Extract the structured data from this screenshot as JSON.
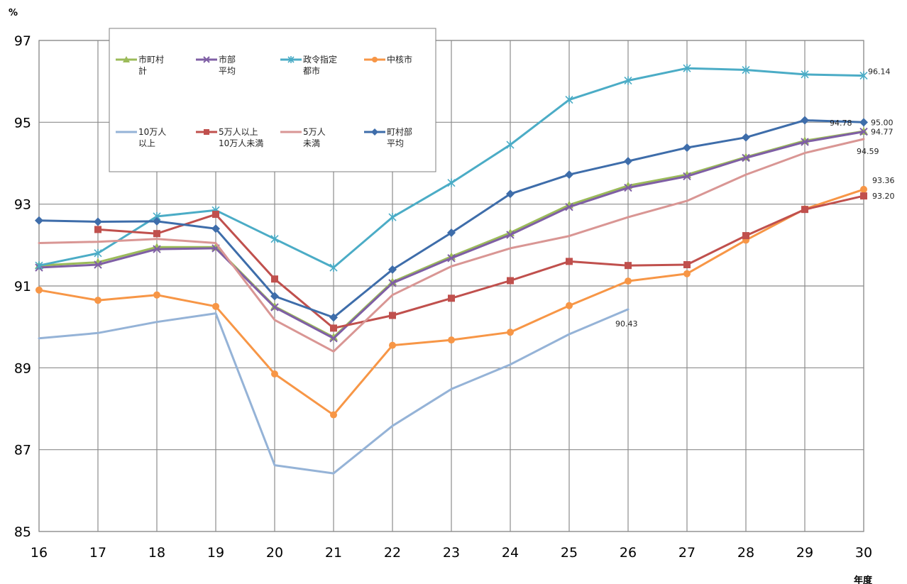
{
  "chart_data": {
    "type": "line",
    "xlabel": "年度",
    "ylabel": "%",
    "x": [
      16,
      17,
      18,
      19,
      20,
      21,
      22,
      23,
      24,
      25,
      26,
      27,
      28,
      29,
      30
    ],
    "ylim": [
      85,
      97
    ],
    "yticks": [
      85,
      87,
      89,
      91,
      93,
      95,
      97
    ],
    "grid": true,
    "legend_position": "top-left",
    "series": [
      {
        "name": "市町村計",
        "legend_lines": [
          "市町村",
          "計"
        ],
        "color": "#9BBB59",
        "marker": "triangle",
        "values": [
          91.5,
          91.58,
          91.95,
          91.95,
          90.5,
          89.75,
          91.1,
          91.72,
          92.3,
          92.98,
          93.45,
          93.72,
          94.15,
          94.55,
          94.78
        ]
      },
      {
        "name": "市部平均",
        "legend_lines": [
          "市部",
          "平均"
        ],
        "color": "#7F5FA5",
        "marker": "x",
        "values": [
          91.45,
          91.52,
          91.9,
          91.92,
          90.48,
          89.72,
          91.07,
          91.68,
          92.25,
          92.93,
          93.4,
          93.68,
          94.13,
          94.52,
          94.77
        ]
      },
      {
        "name": "政令指定都市",
        "legend_lines": [
          "政令指定",
          "都市"
        ],
        "color": "#4BACC6",
        "marker": "star",
        "values": [
          91.5,
          91.8,
          92.7,
          92.85,
          92.15,
          91.45,
          92.68,
          93.52,
          94.45,
          95.55,
          96.02,
          96.32,
          96.28,
          96.17,
          96.14
        ]
      },
      {
        "name": "中核市",
        "legend_lines": [
          "中核市"
        ],
        "color": "#F79646",
        "marker": "circle",
        "values": [
          90.9,
          90.65,
          90.78,
          90.5,
          88.85,
          87.85,
          89.55,
          89.68,
          89.87,
          90.52,
          91.12,
          91.3,
          92.12,
          92.88,
          93.36
        ]
      },
      {
        "name": "10万人以上",
        "legend_lines": [
          "10万人",
          "以上"
        ],
        "color": "#95B3D7",
        "marker": "none",
        "values": [
          89.72,
          89.85,
          90.12,
          90.33,
          86.62,
          86.42,
          87.58,
          88.48,
          89.08,
          89.82,
          90.43,
          null,
          null,
          null,
          null
        ]
      },
      {
        "name": "5万人以上10万人未満",
        "legend_lines": [
          "5万人以上",
          "10万人未満"
        ],
        "color": "#C0504D",
        "marker": "square",
        "values": [
          null,
          92.38,
          92.28,
          92.75,
          91.17,
          89.97,
          90.28,
          90.7,
          91.13,
          91.6,
          91.5,
          91.52,
          92.23,
          92.87,
          93.2
        ]
      },
      {
        "name": "5万人未満",
        "legend_lines": [
          "5万人",
          "未満"
        ],
        "color": "#D99694",
        "marker": "none",
        "values": [
          92.05,
          92.08,
          92.15,
          92.05,
          90.17,
          89.4,
          90.78,
          91.48,
          91.92,
          92.22,
          92.68,
          93.08,
          93.72,
          94.25,
          94.59
        ]
      },
      {
        "name": "町村部平均",
        "legend_lines": [
          "町村部",
          "平均"
        ],
        "color": "#3E6DAA",
        "marker": "diamond",
        "values": [
          92.6,
          92.57,
          92.58,
          92.4,
          90.75,
          90.23,
          91.4,
          92.3,
          93.25,
          93.72,
          94.05,
          94.38,
          94.63,
          95.05,
          95.0
        ]
      }
    ],
    "annotations": [
      {
        "text": "96.14",
        "series": 2,
        "index": 14,
        "dx": 6,
        "dy": -2
      },
      {
        "text": "95.00",
        "series": 7,
        "index": 14,
        "dx": 10,
        "dy": 4
      },
      {
        "text": "94.78",
        "series": 0,
        "index": 14,
        "dx": -48,
        "dy": -8
      },
      {
        "text": "94.77",
        "series": 1,
        "index": 14,
        "dx": 10,
        "dy": 4
      },
      {
        "text": "94.59",
        "series": 6,
        "index": 14,
        "dx": -10,
        "dy": 21
      },
      {
        "text": "93.36",
        "series": 3,
        "index": 14,
        "dx": 12,
        "dy": -9
      },
      {
        "text": "93.20",
        "series": 5,
        "index": 14,
        "dx": 12,
        "dy": 4
      },
      {
        "text": "90.43",
        "series": 4,
        "index": 10,
        "dx": -18,
        "dy": 24
      }
    ]
  }
}
